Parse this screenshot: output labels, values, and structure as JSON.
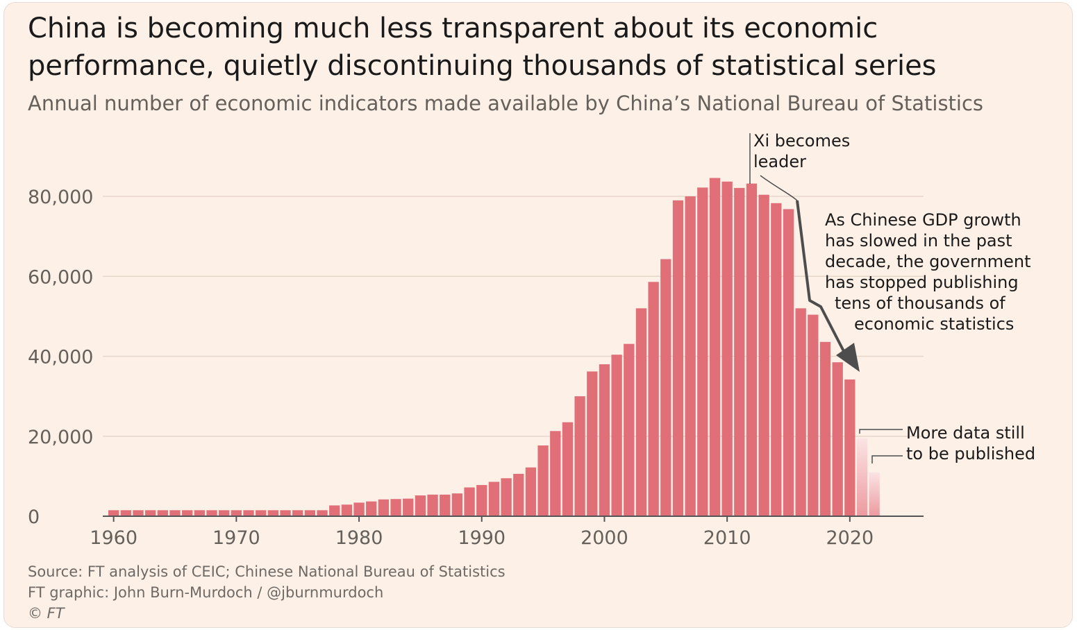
{
  "title": "China is becoming much less transparent about its economic performance, quietly discontinuing thousands of statistical series",
  "subtitle": "Annual number of economic indicators made available by China’s National Bureau of Statistics",
  "footer": {
    "source": "Source: FT analysis of CEIC; Chinese National Bureau of Statistics",
    "credit": "FT graphic: John Burn-Murdoch / @jburnmurdoch",
    "copyright": "© FT"
  },
  "colors": {
    "bar": "#e06f78",
    "bar_faded": "#f1b6b9",
    "grid": "#e6d6ca",
    "axis": "#555555",
    "annotation": "#4d4d4d"
  },
  "annotations": {
    "xi": [
      "Xi becomes",
      "leader"
    ],
    "decline": [
      "As Chinese GDP growth",
      "has slowed in the past",
      "decade, the government",
      "has stopped publishing",
      "tens of thousands of",
      "economic statistics"
    ],
    "pending": [
      "More data still",
      "to be published"
    ]
  },
  "chart_data": {
    "type": "bar",
    "x": [
      1960,
      1961,
      1962,
      1963,
      1964,
      1965,
      1966,
      1967,
      1968,
      1969,
      1970,
      1971,
      1972,
      1973,
      1974,
      1975,
      1976,
      1977,
      1978,
      1979,
      1980,
      1981,
      1982,
      1983,
      1984,
      1985,
      1986,
      1987,
      1988,
      1989,
      1990,
      1991,
      1992,
      1993,
      1994,
      1995,
      1996,
      1997,
      1998,
      1999,
      2000,
      2001,
      2002,
      2003,
      2004,
      2005,
      2006,
      2007,
      2008,
      2009,
      2010,
      2011,
      2012,
      2013,
      2014,
      2015,
      2016,
      2017,
      2018,
      2019,
      2020,
      2021,
      2022
    ],
    "values": [
      1500,
      1500,
      1500,
      1500,
      1500,
      1500,
      1500,
      1500,
      1500,
      1500,
      1500,
      1500,
      1500,
      1500,
      1500,
      1500,
      1500,
      1500,
      2700,
      2900,
      3400,
      3700,
      4200,
      4300,
      4400,
      5200,
      5400,
      5400,
      5700,
      7200,
      7800,
      8600,
      9500,
      10600,
      12200,
      17700,
      21300,
      23500,
      30000,
      36200,
      38000,
      40400,
      43100,
      52000,
      58600,
      64300,
      79000,
      80000,
      82200,
      84600,
      83700,
      82100,
      83200,
      80400,
      78300,
      76800,
      52000,
      50400,
      43600,
      38500,
      34200,
      19500,
      11000
    ],
    "incomplete_years": [
      2021,
      2022
    ],
    "ylim": [
      0,
      80000
    ],
    "yticks": [
      0,
      20000,
      40000,
      60000,
      80000
    ],
    "ytick_labels": [
      "0",
      "20,000",
      "40,000",
      "60,000",
      "80,000"
    ],
    "xticks": [
      1960,
      1970,
      1980,
      1990,
      2000,
      2010,
      2020
    ],
    "xtick_labels": [
      "1960",
      "1970",
      "1980",
      "1990",
      "2000",
      "2010",
      "2020"
    ],
    "xlabel": "",
    "ylabel": "",
    "grid": true,
    "legend": "none"
  }
}
